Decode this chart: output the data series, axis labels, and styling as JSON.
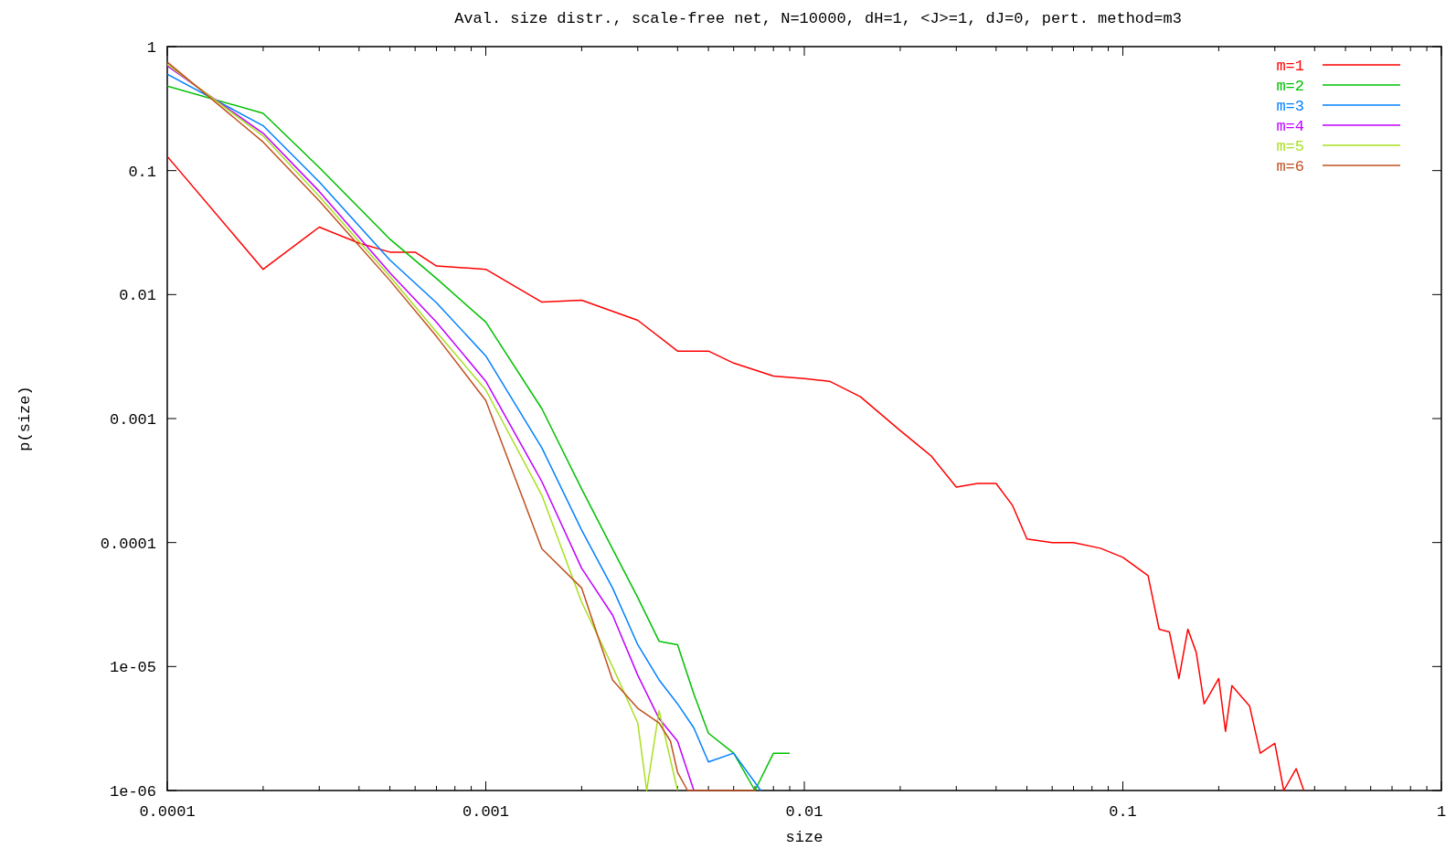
{
  "chart_data": {
    "type": "line",
    "title": "Aval. size distr., scale-free net, N=10000, dH=1, <J>=1, dJ=0, pert. method=m3",
    "xlabel": "size",
    "ylabel": "p(size)",
    "log": "xy",
    "grid": false,
    "legend": "top right",
    "line_style": "solid",
    "xlim": [
      0.0001,
      1
    ],
    "ylim": [
      1e-06,
      1
    ],
    "xticks": [
      {
        "value": 0.0001,
        "label": "0.0001"
      },
      {
        "value": 0.0002,
        "label": null
      },
      {
        "value": 0.0003,
        "label": null
      },
      {
        "value": 0.0004,
        "label": null
      },
      {
        "value": 0.0005,
        "label": null
      },
      {
        "value": 0.0006,
        "label": null
      },
      {
        "value": 0.0007,
        "label": null
      },
      {
        "value": 0.0008,
        "label": null
      },
      {
        "value": 0.0009,
        "label": null
      },
      {
        "value": 0.001,
        "label": "0.001"
      },
      {
        "value": 0.002,
        "label": null
      },
      {
        "value": 0.003,
        "label": null
      },
      {
        "value": 0.004,
        "label": null
      },
      {
        "value": 0.005,
        "label": null
      },
      {
        "value": 0.006,
        "label": null
      },
      {
        "value": 0.007,
        "label": null
      },
      {
        "value": 0.008,
        "label": null
      },
      {
        "value": 0.009,
        "label": null
      },
      {
        "value": 0.01,
        "label": "0.01"
      },
      {
        "value": 0.02,
        "label": null
      },
      {
        "value": 0.03,
        "label": null
      },
      {
        "value": 0.04,
        "label": null
      },
      {
        "value": 0.05,
        "label": null
      },
      {
        "value": 0.06,
        "label": null
      },
      {
        "value": 0.07,
        "label": null
      },
      {
        "value": 0.08,
        "label": null
      },
      {
        "value": 0.09,
        "label": null
      },
      {
        "value": 0.1,
        "label": "0.1"
      },
      {
        "value": 0.2,
        "label": null
      },
      {
        "value": 0.3,
        "label": null
      },
      {
        "value": 0.4,
        "label": null
      },
      {
        "value": 0.5,
        "label": null
      },
      {
        "value": 0.6,
        "label": null
      },
      {
        "value": 0.7,
        "label": null
      },
      {
        "value": 0.8,
        "label": null
      },
      {
        "value": 0.9,
        "label": null
      },
      {
        "value": 1,
        "label": "1"
      }
    ],
    "yticks": [
      {
        "value": 1e-06,
        "label": "1e-06"
      },
      {
        "value": 1e-05,
        "label": "1e-05"
      },
      {
        "value": 0.0001,
        "label": "0.0001"
      },
      {
        "value": 0.001,
        "label": "0.001"
      },
      {
        "value": 0.01,
        "label": "0.01"
      },
      {
        "value": 0.1,
        "label": "0.1"
      },
      {
        "value": 1,
        "label": "1"
      }
    ],
    "series": [
      {
        "name": "m=1",
        "color": "#ff0000",
        "x": [
          0.0001,
          0.0002,
          0.0003,
          0.0004,
          0.0005,
          0.0006,
          0.0007,
          0.001,
          0.0015,
          0.002,
          0.003,
          0.004,
          0.005,
          0.006,
          0.008,
          0.01,
          0.012,
          0.015,
          0.02,
          0.025,
          0.03,
          0.035,
          0.04,
          0.045,
          0.05,
          0.06,
          0.07,
          0.085,
          0.1,
          0.12,
          0.13,
          0.14,
          0.15,
          0.16,
          0.17,
          0.18,
          0.2,
          0.21,
          0.22,
          0.25,
          0.27,
          0.3,
          0.32,
          0.35,
          0.37
        ],
        "values": [
          0.13,
          0.016,
          0.035,
          0.026,
          0.022,
          0.022,
          0.017,
          0.016,
          0.0087,
          0.009,
          0.0062,
          0.0035,
          0.0035,
          0.0028,
          0.0022,
          0.0021,
          0.002,
          0.0015,
          0.0008,
          0.0005,
          0.00028,
          0.0003,
          0.0003,
          0.0002,
          0.000107,
          0.0001,
          0.0001,
          9e-05,
          7.6e-05,
          5.4e-05,
          2e-05,
          1.9e-05,
          8e-06,
          2e-05,
          1.3e-05,
          5e-06,
          8e-06,
          3e-06,
          7e-06,
          4.8e-06,
          2e-06,
          2.4e-06,
          1e-06,
          1.5e-06,
          1e-06
        ]
      },
      {
        "name": "m=2",
        "color": "#00c000",
        "x": [
          0.0001,
          0.0002,
          0.0003,
          0.0005,
          0.0007,
          0.001,
          0.0015,
          0.002,
          0.0025,
          0.003,
          0.0035,
          0.004,
          0.0045,
          0.005,
          0.006,
          0.007,
          0.008,
          0.009
        ],
        "values": [
          0.48,
          0.29,
          0.106,
          0.028,
          0.0135,
          0.006,
          0.0012,
          0.00027,
          8.9e-05,
          3.6e-05,
          1.6e-05,
          1.5e-05,
          6e-06,
          2.9e-06,
          2e-06,
          1e-06,
          2e-06,
          2e-06
        ]
      },
      {
        "name": "m=3",
        "color": "#0080ff",
        "x": [
          0.0001,
          0.0002,
          0.0003,
          0.0005,
          0.0007,
          0.001,
          0.0015,
          0.002,
          0.0025,
          0.003,
          0.0035,
          0.004,
          0.0045,
          0.005,
          0.006,
          0.0073
        ],
        "values": [
          0.6,
          0.23,
          0.081,
          0.019,
          0.0086,
          0.0032,
          0.00058,
          0.000126,
          4.3e-05,
          1.5e-05,
          7.8e-06,
          5e-06,
          3.2e-06,
          1.7e-06,
          2e-06,
          1e-06
        ]
      },
      {
        "name": "m=4",
        "color": "#c000ff",
        "x": [
          0.0001,
          0.0002,
          0.0003,
          0.0005,
          0.0007,
          0.001,
          0.0015,
          0.002,
          0.0025,
          0.003,
          0.0035,
          0.004,
          0.0045
        ],
        "values": [
          0.7,
          0.2,
          0.068,
          0.015,
          0.006,
          0.002,
          0.00031,
          6.2e-05,
          2.6e-05,
          8.5e-06,
          3.8e-06,
          2.5e-06,
          1e-06
        ]
      },
      {
        "name": "m=5",
        "color": "#a8e020",
        "x": [
          0.0001,
          0.0002,
          0.0003,
          0.0005,
          0.0007,
          0.001,
          0.0015,
          0.002,
          0.0025,
          0.003,
          0.0032,
          0.0035,
          0.004
        ],
        "values": [
          0.72,
          0.19,
          0.062,
          0.014,
          0.005,
          0.0017,
          0.00024,
          3.3e-05,
          1e-05,
          3.5e-06,
          1e-06,
          4.4e-06,
          1e-06
        ]
      },
      {
        "name": "m=6",
        "color": "#c05020",
        "x": [
          0.0001,
          0.0002,
          0.0003,
          0.0005,
          0.0007,
          0.001,
          0.0015,
          0.002,
          0.0025,
          0.003,
          0.0035,
          0.0038,
          0.004,
          0.0043,
          0.007
        ],
        "values": [
          0.75,
          0.17,
          0.057,
          0.013,
          0.0046,
          0.0014,
          8.9e-05,
          4.3e-05,
          7.8e-06,
          4.6e-06,
          3.5e-06,
          2.5e-06,
          1.4e-06,
          1e-06,
          1e-06
        ]
      }
    ]
  }
}
